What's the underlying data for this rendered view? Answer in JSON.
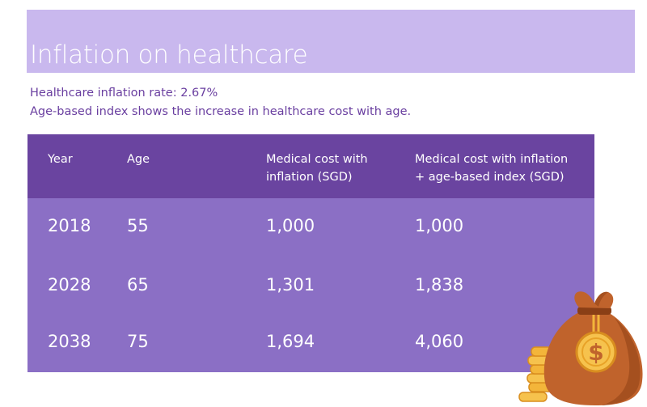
{
  "title": "Inflation on healthcare",
  "subtitle_1": "Healthcare inflation rate: 2.67%",
  "subtitle_2": "Age-based index shows the increase in healthcare cost with age.",
  "table": {
    "headers": [
      {
        "line1": "Year",
        "line2": ""
      },
      {
        "line1": "Age",
        "line2": ""
      },
      {
        "line1": "Medical cost with",
        "line2": "inflation (SGD)"
      },
      {
        "line1": "Medical cost with inflation",
        "line2": "+ age-based index (SGD)"
      }
    ],
    "rows": [
      {
        "year": "2018",
        "age": "55",
        "cost_inflation": "1,000",
        "cost_inflation_age": "1,000"
      },
      {
        "year": "2028",
        "age": "65",
        "cost_inflation": "1,301",
        "cost_inflation_age": "1,838"
      },
      {
        "year": "2038",
        "age": "75",
        "cost_inflation": "1,694",
        "cost_inflation_age": "4,060"
      }
    ]
  },
  "icons": [
    "money-bag-icon",
    "coin-stack-icon",
    "dollar-sign-icon"
  ],
  "colors": {
    "banner": "#c9b8ee",
    "header_row": "#6a44a0",
    "body_rows": "#8b6fc5",
    "subtitle_text": "#6a3fa0",
    "bag": "#c0632c",
    "coin": "#f3b53a"
  }
}
